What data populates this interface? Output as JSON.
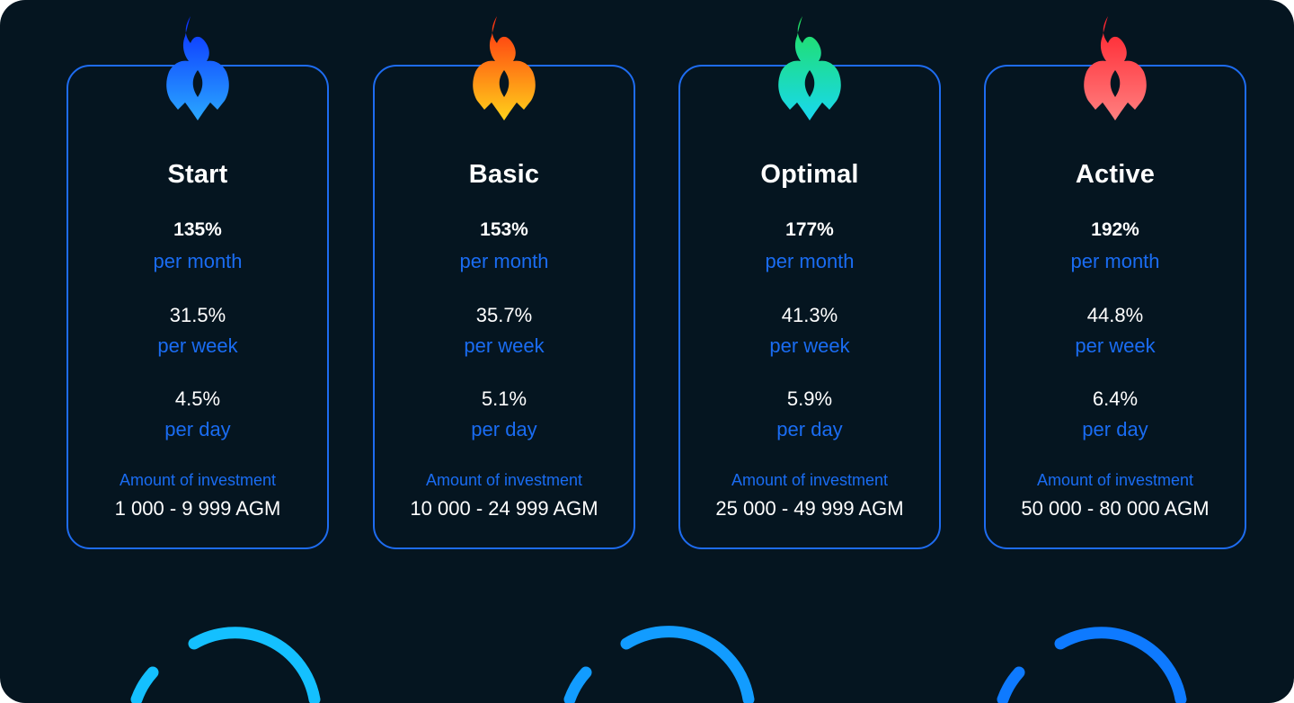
{
  "plans": [
    {
      "name": "Start",
      "monthly_percent": "135%",
      "monthly_label": "per month",
      "weekly_percent": "31.5%",
      "weekly_label": "per week",
      "daily_percent": "4.5%",
      "daily_label": "per day",
      "investment_label": "Amount of investment",
      "investment_range": "1 000 - 9 999 AGM",
      "icon": "blue-flame-icon",
      "flame_colors": [
        "#0a2cff",
        "#2aa8ff"
      ]
    },
    {
      "name": "Basic",
      "monthly_percent": "153%",
      "monthly_label": "per month",
      "weekly_percent": "35.7%",
      "weekly_label": "per week",
      "daily_percent": "5.1%",
      "daily_label": "per day",
      "investment_label": "Amount of investment",
      "investment_range": "10 000 - 24 999 AGM",
      "icon": "orange-flame-icon",
      "flame_colors": [
        "#ff2a10",
        "#ffd21a"
      ]
    },
    {
      "name": "Optimal",
      "monthly_percent": "177%",
      "monthly_label": "per month",
      "weekly_percent": "41.3%",
      "weekly_label": "per week",
      "daily_percent": "5.9%",
      "daily_label": "per day",
      "investment_label": "Amount of investment",
      "investment_range": "25 000 - 49 999 AGM",
      "icon": "green-flame-icon",
      "flame_colors": [
        "#22e05a",
        "#18d8f0"
      ]
    },
    {
      "name": "Active",
      "monthly_percent": "192%",
      "monthly_label": "per month",
      "weekly_percent": "44.8%",
      "weekly_label": "per week",
      "daily_percent": "6.4%",
      "daily_label": "per day",
      "investment_label": "Amount of investment",
      "investment_range": "50 000 - 80 000 AGM",
      "icon": "red-flame-icon",
      "flame_colors": [
        "#ff1f2a",
        "#ff8080"
      ]
    }
  ],
  "colors": {
    "background": "#051520",
    "card_border": "#1e6cf0",
    "accent_text": "#1a6cf2",
    "ring": "#0fb0ff"
  }
}
